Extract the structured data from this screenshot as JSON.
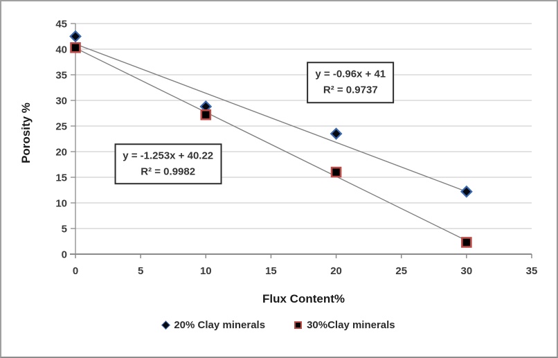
{
  "chart_data": {
    "type": "scatter",
    "title": "",
    "xlabel": "Flux Content%",
    "ylabel": "Porosity %",
    "xlim": [
      0,
      35
    ],
    "ylim": [
      0,
      45
    ],
    "x_ticks": [
      0,
      5,
      10,
      15,
      20,
      25,
      30,
      35
    ],
    "y_ticks": [
      0,
      5,
      10,
      15,
      20,
      25,
      30,
      35,
      40,
      45
    ],
    "grid": "horizontal",
    "legend_position": "bottom",
    "series": [
      {
        "name": "20% Clay minerals",
        "marker": "diamond",
        "marker_fill": "#06090f",
        "marker_edge": "#3a68b0",
        "x": [
          0,
          10,
          20,
          30
        ],
        "y": [
          42.5,
          28.8,
          23.5,
          12.2
        ],
        "trendline": {
          "slope": -0.96,
          "intercept": 41,
          "r2": 0.9737,
          "x_range": [
            0,
            30
          ]
        }
      },
      {
        "name": "30%Clay minerals",
        "marker": "square",
        "marker_fill": "#000000",
        "marker_edge": "#be4b48",
        "x": [
          0,
          10,
          20,
          30
        ],
        "y": [
          40.3,
          27.2,
          16,
          2.3
        ],
        "trendline": {
          "slope": -1.253,
          "intercept": 40.22,
          "r2": 0.9982,
          "x_range": [
            0,
            30
          ]
        }
      }
    ],
    "annotations": [
      {
        "line1": "y = -1.253x + 40.22",
        "line2": "R² = 0.9982",
        "x": 7.1,
        "y": 17.6
      },
      {
        "line1": "y = -0.96x + 41",
        "line2": "R² = 0.9737",
        "x": 21.1,
        "y": 33.5
      }
    ],
    "colors": {
      "background": "#ffffff",
      "frame_border": "#a0a0a0",
      "gridline": "#c6c6c6",
      "axis": "#8a8a8a",
      "tick_text": "#3a3a3a",
      "trendline": "#7f7f7f",
      "annotation_border": "#2b2b2b"
    }
  }
}
